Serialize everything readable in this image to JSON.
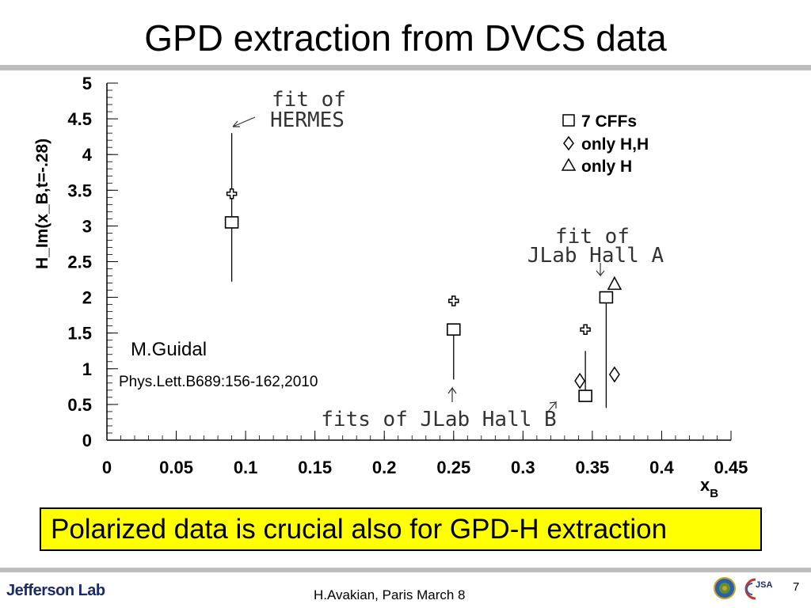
{
  "slide": {
    "title": "GPD extraction from DVCS data",
    "callout": "Polarized data is crucial also for GPD-H extraction",
    "author": "M.Guidal",
    "reference": "Phys.Lett.B689:156-162,2010",
    "footer_text": "H.Avakian, Paris March 8",
    "page_number": "7",
    "logo_left": "Jefferson Lab",
    "logo_right_text": "JSA",
    "colors": {
      "callout_bg": "#ffff00",
      "rule": "#bdbdbd",
      "logo_blue": "#1a2a6c",
      "logo_red": "#c0392b"
    }
  },
  "chart_data": {
    "type": "scatter",
    "ylabel": "H_Im(x_B,t=-.28)",
    "xlabel": "x_B",
    "xlim": [
      0,
      0.45
    ],
    "ylim": [
      0,
      5
    ],
    "x_ticks": [
      0,
      0.05,
      0.1,
      0.15,
      0.2,
      0.25,
      0.3,
      0.35,
      0.4,
      0.45
    ],
    "x_tick_labels": [
      "0",
      "0.05",
      "0.1",
      "0.15",
      "0.2",
      "0.25",
      "0.3",
      "0.35",
      "0.4",
      "0.45"
    ],
    "y_ticks": [
      0,
      0.5,
      1,
      1.5,
      2,
      2.5,
      3,
      3.5,
      4,
      4.5,
      5
    ],
    "y_tick_labels": [
      "0",
      "0.5",
      "1",
      "1.5",
      "2",
      "2.5",
      "3",
      "3.5",
      "4",
      "4.5",
      "5"
    ],
    "grid": false,
    "legend_position": "top-right",
    "series": [
      {
        "name": "7 CFFs",
        "marker": "square",
        "points": [
          {
            "x": 0.09,
            "y": 3.05,
            "ylo": 2.22,
            "yhi": 4.3
          },
          {
            "x": 0.25,
            "y": 1.55,
            "ylo": 0.85,
            "yhi": 1.55
          },
          {
            "x": 0.345,
            "y": 0.62,
            "ylo": 0.55,
            "yhi": 1.25
          },
          {
            "x": 0.36,
            "y": 2.0,
            "ylo": 0.45,
            "yhi": 2.0
          }
        ]
      },
      {
        "name": "only H,H",
        "marker": "diamond",
        "points": [
          {
            "x": 0.341,
            "y": 0.83
          },
          {
            "x": 0.366,
            "y": 0.92
          }
        ]
      },
      {
        "name": "only H",
        "marker": "triangle",
        "points": [
          {
            "x": 0.366,
            "y": 2.18
          }
        ]
      },
      {
        "marker": "cross",
        "points": [
          {
            "x": 0.09,
            "y": 3.45
          },
          {
            "x": 0.25,
            "y": 1.95
          },
          {
            "x": 0.345,
            "y": 1.55
          }
        ]
      }
    ],
    "annotations": [
      {
        "text": "fit of",
        "x": 0.1,
        "y": 4.75
      },
      {
        "text": "HERMES",
        "x": 0.1,
        "y": 4.48
      },
      {
        "text": "fit of",
        "x": 0.36,
        "y": 2.8
      },
      {
        "text": "JLab Hall A",
        "x": 0.36,
        "y": 2.55
      },
      {
        "text": "fits of JLab Hall B",
        "x": 0.25,
        "y": 0.25
      }
    ]
  }
}
